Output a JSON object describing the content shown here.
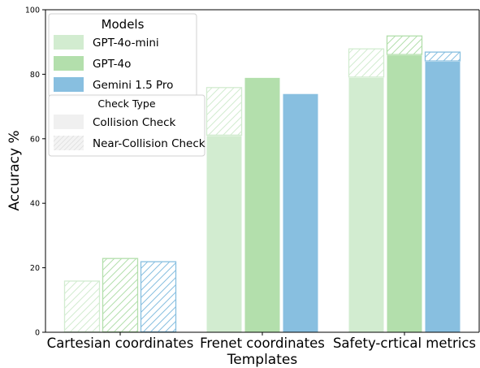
{
  "chart_data": {
    "type": "bar",
    "title": "",
    "xlabel": "Templates",
    "ylabel": "Accuracy %",
    "ylim": [
      0,
      100
    ],
    "yticks": [
      "0",
      "20",
      "40",
      "60",
      "80",
      "100"
    ],
    "categories": [
      "Cartesian coordinates",
      "Frenet coordinates",
      "Safety-crtical metrics"
    ],
    "series": [
      {
        "name": "GPT-4o-mini",
        "color": "#d2ecd0",
        "collision": [
          0,
          61,
          79
        ],
        "near_collision": [
          16,
          76,
          88
        ]
      },
      {
        "name": "GPT-4o",
        "color": "#b3dfac",
        "collision": [
          0,
          79,
          86
        ],
        "near_collision": [
          23,
          79,
          92
        ]
      },
      {
        "name": "Gemini 1.5 Pro",
        "color": "#88bfe0",
        "collision": [
          0,
          74,
          84
        ],
        "near_collision": [
          22,
          74,
          87
        ]
      }
    ],
    "legend_models": {
      "title": "Models",
      "placement": "top-left",
      "entries": [
        "GPT-4o-mini",
        "GPT-4o",
        "Gemini 1.5 Pro"
      ]
    },
    "legend_check": {
      "title": "Check Type",
      "placement": "upper-left",
      "entries": [
        "Collision Check",
        "Near-Collision Check"
      ],
      "swatch_color": "#f0f0f0",
      "hatch_color": "#e2e2e2"
    },
    "grid": false
  }
}
